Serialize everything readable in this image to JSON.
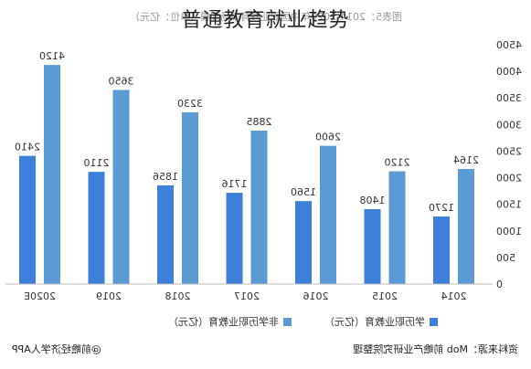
{
  "page_title": "普通教育就业趋势",
  "chart_data": {
    "type": "bar",
    "title": "图表5：2014-2020年中国职业教育市场规模（单位：亿元）",
    "categories": [
      "2014",
      "2015",
      "2016",
      "2017",
      "2018",
      "2019",
      "2020E"
    ],
    "series": [
      {
        "name": "非学历职业教育（亿元）",
        "values": [
          2164,
          2120,
          2600,
          2885,
          3230,
          3650,
          4120
        ],
        "color": "#5b9bd5"
      },
      {
        "name": "学历职业教育（亿元）",
        "values": [
          1270,
          1408,
          1560,
          1716,
          1856,
          2110,
          2410
        ],
        "color": "#3d7fd9"
      }
    ],
    "ylim": [
      0,
      4500
    ],
    "yticks": [
      0,
      500,
      1000,
      1500,
      2000,
      2500,
      3000,
      3500,
      4000,
      4500
    ],
    "grid": false,
    "legend": "bottom",
    "xlabel": "",
    "ylabel": ""
  },
  "footer": {
    "source": "资料来源：Mob 前瞻产业研究院整理",
    "credit": "@前瞻经济学人APP"
  }
}
